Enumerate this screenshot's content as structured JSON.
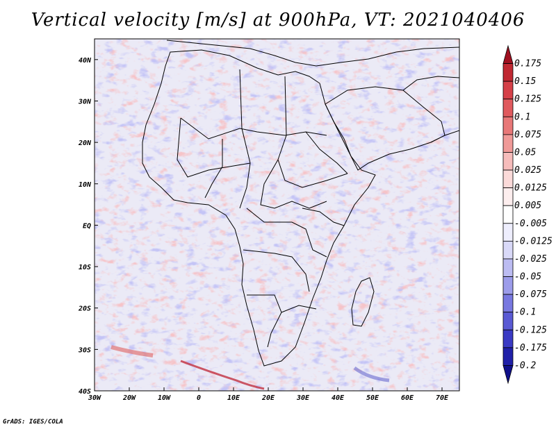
{
  "title": "Vertical velocity [m/s] at 900hPa, VT: 2021040406",
  "credit": "GrADS: IGES/COLA",
  "map": {
    "lon_range": [
      -30,
      75
    ],
    "lat_range": [
      -40,
      45
    ],
    "x_ticks": [
      {
        "value": -30,
        "label": "30W"
      },
      {
        "value": -20,
        "label": "20W"
      },
      {
        "value": -10,
        "label": "10W"
      },
      {
        "value": 0,
        "label": "0"
      },
      {
        "value": 10,
        "label": "10E"
      },
      {
        "value": 20,
        "label": "20E"
      },
      {
        "value": 30,
        "label": "30E"
      },
      {
        "value": 40,
        "label": "40E"
      },
      {
        "value": 50,
        "label": "50E"
      },
      {
        "value": 60,
        "label": "60E"
      },
      {
        "value": 70,
        "label": "70E"
      }
    ],
    "y_ticks": [
      {
        "value": 40,
        "label": "40N"
      },
      {
        "value": 30,
        "label": "30N"
      },
      {
        "value": 20,
        "label": "20N"
      },
      {
        "value": 10,
        "label": "10N"
      },
      {
        "value": 0,
        "label": "EQ"
      },
      {
        "value": -10,
        "label": "10S"
      },
      {
        "value": -20,
        "label": "20S"
      },
      {
        "value": -30,
        "label": "30S"
      },
      {
        "value": -40,
        "label": "40S"
      }
    ]
  },
  "colorbar": {
    "labels": [
      "0.175",
      "0.15",
      "0.125",
      "0.1",
      "0.075",
      "0.05",
      "0.025",
      "0.0125",
      "0.005",
      "-0.005",
      "-0.0125",
      "-0.025",
      "-0.05",
      "-0.075",
      "-0.1",
      "-0.125",
      "-0.175",
      "-0.2"
    ],
    "colors": [
      "#a01020",
      "#c02832",
      "#d54048",
      "#e05a5e",
      "#e87878",
      "#f09a98",
      "#f6bcbb",
      "#fbdad9",
      "#fdeeee",
      "#ffffff",
      "#eeeefd",
      "#d9d9f8",
      "#bcbcf2",
      "#9c9cea",
      "#7878e0",
      "#5a5ad4",
      "#3a3ac4",
      "#2020a8",
      "#10108a"
    ]
  }
}
